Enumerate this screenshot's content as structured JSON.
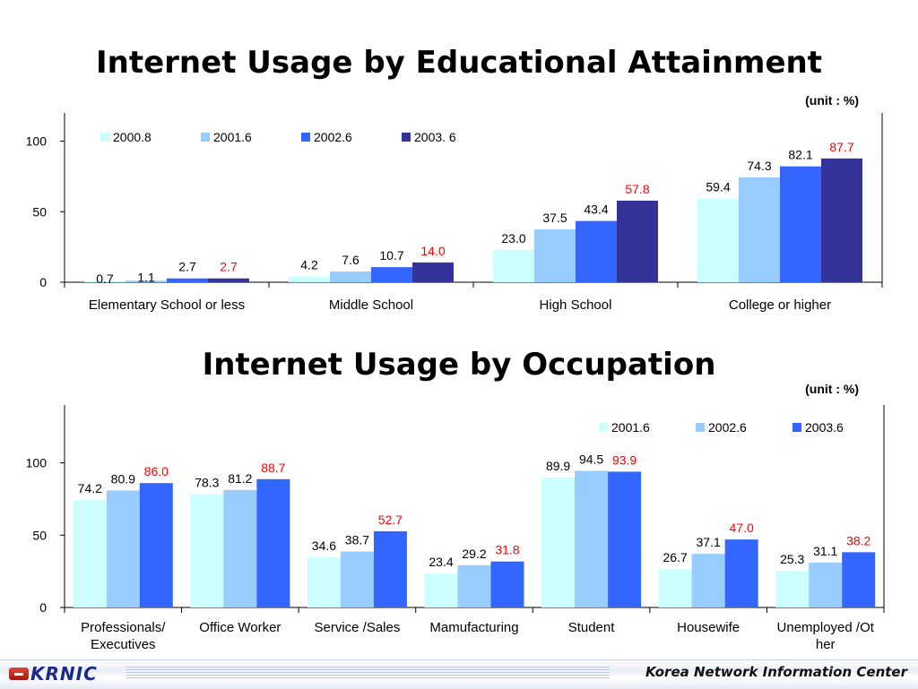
{
  "chart_data": [
    {
      "type": "bar",
      "title": "Internet Usage by Educational Attainment",
      "unit_note": "(unit : %)",
      "categories": [
        "Elementary School or less",
        "Middle School",
        "High School",
        "College or higher"
      ],
      "series": [
        {
          "name": "2000.8",
          "color": "#ccffff",
          "values": [
            0.7,
            4.2,
            23.0,
            59.4
          ],
          "labels": [
            "0.7",
            "4.2",
            "23.0",
            "59.4"
          ]
        },
        {
          "name": "2001.6",
          "color": "#99ccff",
          "values": [
            1.1,
            7.6,
            37.5,
            74.3
          ],
          "labels": [
            "1.1",
            "7.6",
            "37.5",
            "74.3"
          ]
        },
        {
          "name": "2002.6",
          "color": "#3366ff",
          "values": [
            2.7,
            10.7,
            43.4,
            82.1
          ],
          "labels": [
            "2.7",
            "10.7",
            "43.4",
            "82.1"
          ]
        },
        {
          "name": "2003. 6",
          "color": "#333399",
          "values": [
            2.7,
            14.0,
            57.8,
            87.7
          ],
          "labels": [
            "2.7",
            "14.0",
            "57.8",
            "87.7"
          ],
          "label_color": "#ff0000"
        }
      ],
      "yticks": [
        0,
        50,
        100
      ],
      "ylim": [
        0,
        120
      ],
      "legend": "top-left"
    },
    {
      "type": "bar",
      "title": "Internet Usage by Occupation",
      "unit_note": "(unit : %)",
      "categories": [
        "Professionals/ Executives",
        "Office Worker",
        "Service /Sales",
        "Mamufacturing",
        "Student",
        "Housewife",
        "Unemployed /Ot her"
      ],
      "category_lines": [
        [
          "Professionals/",
          "Executives"
        ],
        [
          "Office Worker"
        ],
        [
          "Service /Sales"
        ],
        [
          "Mamufacturing"
        ],
        [
          "Student"
        ],
        [
          "Housewife"
        ],
        [
          "Unemployed /Ot",
          "her"
        ]
      ],
      "series": [
        {
          "name": "2001.6",
          "color": "#ccffff",
          "values": [
            74.2,
            78.3,
            34.6,
            23.4,
            89.9,
            26.7,
            25.3
          ],
          "labels": [
            "74.2",
            "78.3",
            "34.6",
            "23.4",
            "89.9",
            "26.7",
            "25.3"
          ]
        },
        {
          "name": "2002.6",
          "color": "#99ccff",
          "values": [
            80.9,
            81.2,
            38.7,
            29.2,
            94.5,
            37.1,
            31.1
          ],
          "labels": [
            "80.9",
            "81.2",
            "38.7",
            "29.2",
            "94.5",
            "37.1",
            "31.1"
          ]
        },
        {
          "name": "2003.6",
          "color": "#3366ff",
          "values": [
            86.0,
            88.7,
            52.7,
            31.8,
            93.9,
            47.0,
            38.2
          ],
          "labels": [
            "86.0",
            "88.7",
            "52.7",
            "31.8",
            "93.9",
            "47.0",
            "38.2"
          ],
          "label_color": "#ff0000"
        }
      ],
      "yticks": [
        0,
        50,
        100
      ],
      "ylim": [
        0,
        140
      ],
      "legend": "top-right"
    }
  ],
  "footer": {
    "logo_text": "KRNIC",
    "organization": "Korea Network Information Center"
  }
}
